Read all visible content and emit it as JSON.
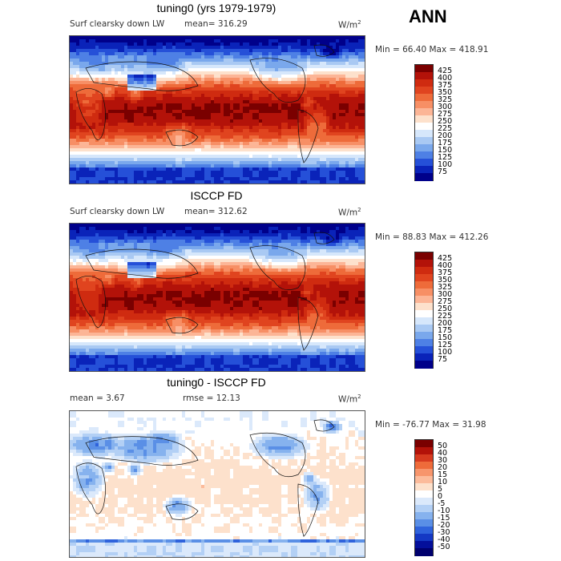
{
  "season": "ANN",
  "panels": [
    {
      "title": "tuning0 (yrs 1979-1979)",
      "variable": "Surf clearsky down LW",
      "mean_label": "mean= 316.29",
      "units_base": "W/m",
      "units_exp": "2",
      "minmax_label": "Min =  66.40 Max = 418.91",
      "colorbar_labels": [
        "425",
        "400",
        "375",
        "350",
        "325",
        "300",
        "275",
        "250",
        "225",
        "200",
        "175",
        "150",
        "125",
        "100",
        "75"
      ],
      "colorbar_colors": [
        "#7a0000",
        "#b31209",
        "#cf2b10",
        "#e0441f",
        "#ee6b3a",
        "#f78f65",
        "#fcb596",
        "#fde1cc",
        "#ffffff",
        "#d6e7fb",
        "#a9c9f3",
        "#7aa8ec",
        "#4e80e5",
        "#2550d8",
        "#0a23b9",
        "#00008a"
      ],
      "kind": "field_a"
    },
    {
      "title": "ISCCP FD",
      "variable": "Surf clearsky down LW",
      "mean_label": "mean= 312.62",
      "units_base": "W/m",
      "units_exp": "2",
      "minmax_label": "Min =  88.83 Max = 412.26",
      "colorbar_labels": [
        "425",
        "400",
        "375",
        "350",
        "325",
        "300",
        "275",
        "250",
        "225",
        "200",
        "175",
        "150",
        "125",
        "100",
        "75"
      ],
      "colorbar_colors": [
        "#7a0000",
        "#b31209",
        "#cf2b10",
        "#e0441f",
        "#ee6b3a",
        "#f78f65",
        "#fcb596",
        "#fde1cc",
        "#ffffff",
        "#d6e7fb",
        "#a9c9f3",
        "#7aa8ec",
        "#4e80e5",
        "#2550d8",
        "#0a23b9",
        "#00008a"
      ],
      "kind": "field_b"
    },
    {
      "title": "tuning0 - ISCCP FD",
      "mean_label": "mean =    3.67",
      "rmse_label": "rmse =   12.13",
      "units_base": "W/m",
      "units_exp": "2",
      "minmax_label": "Min = -76.77 Max =  31.98",
      "colorbar_labels": [
        "50",
        "40",
        "30",
        "20",
        "15",
        "10",
        "5",
        "0",
        "-5",
        "-10",
        "-15",
        "-20",
        "-30",
        "-40",
        "-50"
      ],
      "colorbar_colors": [
        "#7a0000",
        "#b31209",
        "#d63a1f",
        "#ee6b3a",
        "#f7956c",
        "#fcbb9b",
        "#fde1cc",
        "#ffffff",
        "#dbe9fb",
        "#b3d0f5",
        "#86b2ee",
        "#5a8fe6",
        "#2f63dc",
        "#1438c4",
        "#040f9b",
        "#00006e"
      ],
      "kind": "diff"
    }
  ]
}
